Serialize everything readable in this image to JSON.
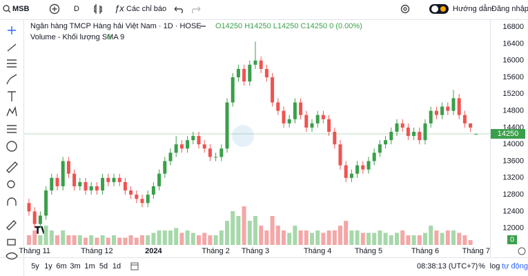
{
  "toolbar": {
    "symbol": "MSB",
    "interval": "D",
    "indicators": "Các chỉ báo",
    "guide": "Hướng dẫn",
    "login": "Đăng nhập"
  },
  "footer": {
    "ranges": [
      "5y",
      "1y",
      "6m",
      "3m",
      "1m",
      "5d",
      "1d"
    ],
    "time": "08:38:13 (UTC+7)",
    "scale_options": [
      "%",
      "log",
      "tự động"
    ]
  },
  "chart_data": {
    "type": "candlestick",
    "title": "Ngân hàng TMCP Hàng hải Việt Nam · 1D · HOSE",
    "ohlc_legend": "O14250 H14250 L14250 C14250 0 (0.00%)",
    "volume_title": "Volume - Khối lượng SMA 9",
    "categories": [
      null,
      "Tháng 11",
      null,
      null,
      null,
      null,
      null,
      null,
      null,
      null,
      null,
      null,
      "Tháng 12",
      null,
      null,
      null,
      null,
      null,
      null,
      null,
      null,
      null,
      "2024",
      null,
      null,
      null,
      null,
      null,
      null,
      null,
      null,
      null,
      null,
      "Tháng 2",
      null,
      null,
      null,
      null,
      null,
      null,
      "Tháng 3",
      null,
      null,
      null,
      null,
      null,
      null,
      null,
      null,
      null,
      null,
      "Tháng 4",
      null,
      null,
      null,
      null,
      null,
      null,
      null,
      null,
      "Tháng 5",
      null,
      null,
      null,
      null,
      null,
      null,
      null,
      null,
      null,
      "Tháng 6",
      null,
      null,
      null,
      null,
      null,
      null,
      null,
      null,
      "Tháng 7"
    ],
    "open": [
      12600,
      12400,
      12100,
      12300,
      12900,
      13200,
      13000,
      13600,
      13300,
      13000,
      13100,
      12900,
      13000,
      12900,
      13200,
      13100,
      13200,
      13100,
      12900,
      12800,
      12700,
      12600,
      12800,
      13000,
      13300,
      13600,
      13800,
      14000,
      13900,
      14100,
      14200,
      14000,
      13900,
      13700,
      13700,
      13900,
      15000,
      15600,
      15800,
      15500,
      15900,
      16000,
      15800,
      15600,
      15000,
      14800,
      14500,
      14600,
      15000,
      14700,
      14400,
      14500,
      14700,
      14600,
      14300,
      14000,
      13500,
      13200,
      13300,
      13500,
      13400,
      13600,
      13800,
      14000,
      14100,
      14300,
      14500,
      14400,
      14200,
      14300,
      14100,
      14500,
      14800,
      14700,
      14900,
      14800,
      15100,
      14700,
      14500,
      14250
    ],
    "high": [
      12700,
      12500,
      12400,
      13000,
      13300,
      13300,
      13700,
      13700,
      13400,
      13200,
      13200,
      13100,
      13100,
      13300,
      13300,
      13300,
      13300,
      13200,
      13000,
      12900,
      12800,
      12900,
      13100,
      13400,
      13700,
      13900,
      14200,
      14100,
      14200,
      14300,
      14300,
      14100,
      14000,
      13800,
      14000,
      15100,
      15700,
      15900,
      15900,
      16000,
      16450,
      16100,
      15900,
      15700,
      15100,
      14900,
      14700,
      15100,
      15100,
      14800,
      14600,
      14800,
      14800,
      14700,
      14400,
      14100,
      13600,
      13400,
      13600,
      13600,
      13700,
      13900,
      14100,
      14200,
      14400,
      14600,
      14600,
      14500,
      14400,
      14400,
      14600,
      14900,
      14900,
      15000,
      15000,
      15300,
      15200,
      14800,
      14500,
      14250
    ],
    "low": [
      12300,
      12000,
      12000,
      12200,
      12800,
      12900,
      12900,
      13200,
      12900,
      12900,
      12800,
      12800,
      12800,
      12800,
      13000,
      13000,
      13000,
      12800,
      12700,
      12600,
      12500,
      12500,
      12700,
      12900,
      13200,
      13500,
      13700,
      13800,
      13800,
      14000,
      13900,
      13800,
      13600,
      13600,
      13600,
      13800,
      14900,
      15500,
      15400,
      15400,
      15800,
      15700,
      15500,
      14900,
      14700,
      14400,
      14400,
      14500,
      14600,
      14300,
      14300,
      14400,
      14500,
      14200,
      13900,
      13400,
      13100,
      13100,
      13200,
      13300,
      13300,
      13500,
      13700,
      13900,
      14000,
      14200,
      14300,
      14100,
      14100,
      14000,
      14000,
      14400,
      14600,
      14600,
      14700,
      14700,
      14600,
      14400,
      14300,
      14250
    ],
    "close": [
      12400,
      12100,
      12300,
      12900,
      13200,
      13000,
      13600,
      13300,
      13000,
      13100,
      12900,
      13000,
      12900,
      13200,
      13100,
      13200,
      13100,
      12900,
      12800,
      12700,
      12600,
      12800,
      13000,
      13300,
      13600,
      13800,
      14000,
      13900,
      14100,
      14200,
      14000,
      13900,
      13700,
      13700,
      13900,
      15000,
      15600,
      15800,
      15500,
      15900,
      16000,
      15800,
      15600,
      15000,
      14800,
      14500,
      14600,
      15000,
      14700,
      14400,
      14500,
      14700,
      14600,
      14300,
      14000,
      13500,
      13200,
      13300,
      13500,
      13400,
      13600,
      13800,
      14000,
      14100,
      14300,
      14500,
      14400,
      14200,
      14300,
      14100,
      14500,
      14800,
      14700,
      14900,
      14800,
      15100,
      14700,
      14500,
      14400,
      14250
    ],
    "volume": [
      2,
      3,
      2,
      4,
      3,
      2,
      3,
      2,
      2,
      2,
      1.5,
      2,
      1.5,
      2,
      1.5,
      2,
      1.5,
      1.5,
      2,
      1.5,
      2,
      2,
      2.5,
      3,
      3,
      3,
      3.5,
      2.5,
      3,
      2.5,
      2,
      2.5,
      2,
      2,
      3,
      5,
      7,
      6,
      8,
      5,
      6,
      4,
      3,
      6,
      4,
      3,
      2.5,
      4,
      3,
      3,
      2.5,
      3,
      2.5,
      3,
      3,
      4,
      5,
      3,
      3,
      2.5,
      2.5,
      2.5,
      3,
      2.5,
      2,
      2.5,
      3,
      2,
      2,
      2,
      2.5,
      4,
      3,
      2.5,
      3,
      3,
      2.5,
      2,
      1,
      0
    ],
    "volume_lim": [
      0,
      10
    ],
    "ylim": [
      11600,
      16950
    ],
    "yticks": [
      12000,
      12400,
      12800,
      13200,
      13600,
      14000,
      14400,
      14800,
      15200,
      15600,
      16000,
      16400,
      16800
    ],
    "up_color": "#3a9f4a",
    "down_color": "#ef5350",
    "volume_up_color": "#a6d8aa",
    "volume_down_color": "#f5a6a6"
  }
}
